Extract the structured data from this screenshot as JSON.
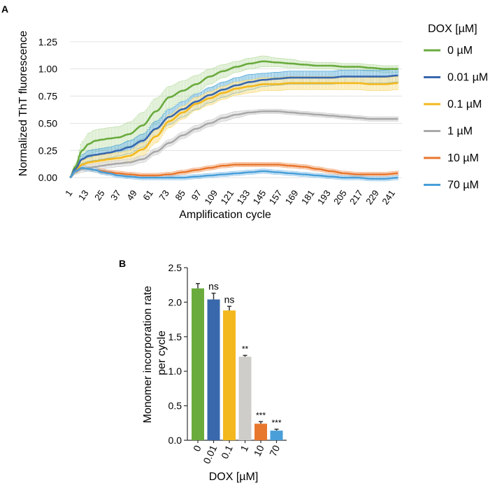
{
  "chart_data": [
    {
      "type": "line",
      "panel_label": "A",
      "title": "",
      "xlabel": "Amplification cycle",
      "ylabel": "Normalized ThT fluorescence",
      "x_ticks": [
        "1",
        "13",
        "25",
        "37",
        "49",
        "61",
        "73",
        "85",
        "97",
        "109",
        "121",
        "133",
        "145",
        "157",
        "169",
        "181",
        "193",
        "205",
        "217",
        "229",
        "241"
      ],
      "y_ticks": [
        "0.00",
        "0.25",
        "0.50",
        "0.75",
        "1.00",
        "1.25"
      ],
      "xlim": [
        1,
        248
      ],
      "ylim": [
        -0.05,
        1.3
      ],
      "grid": "horizontal",
      "legend_title": "DOX [µM]",
      "legend_position": "right",
      "series": [
        {
          "name": "0 µM",
          "color": "#6aab3e",
          "err_color": "#b9dca3",
          "x": [
            1,
            5,
            10,
            15,
            20,
            25,
            30,
            37,
            45,
            55,
            65,
            75,
            85,
            95,
            105,
            115,
            125,
            135,
            145,
            155,
            165,
            175,
            185,
            195,
            205,
            215,
            225,
            235,
            245
          ],
          "y": [
            0.0,
            0.1,
            0.25,
            0.31,
            0.34,
            0.35,
            0.36,
            0.37,
            0.4,
            0.48,
            0.61,
            0.74,
            0.8,
            0.86,
            0.93,
            0.98,
            1.02,
            1.05,
            1.07,
            1.06,
            1.05,
            1.04,
            1.03,
            1.03,
            1.02,
            1.02,
            1.01,
            1.0,
            1.0
          ],
          "err": [
            0,
            0.03,
            0.08,
            0.1,
            0.1,
            0.1,
            0.1,
            0.1,
            0.11,
            0.12,
            0.12,
            0.1,
            0.09,
            0.08,
            0.07,
            0.06,
            0.05,
            0.05,
            0.05,
            0.04,
            0.04,
            0.03,
            0.03,
            0.03,
            0.03,
            0.03,
            0.03,
            0.03,
            0.03
          ]
        },
        {
          "name": "0.01 µM",
          "color": "#3a68ad",
          "err_color": "#3f9fd0",
          "x": [
            1,
            5,
            10,
            15,
            20,
            25,
            30,
            37,
            45,
            55,
            65,
            75,
            85,
            95,
            105,
            115,
            125,
            135,
            145,
            155,
            165,
            175,
            185,
            195,
            205,
            215,
            225,
            235,
            245
          ],
          "y": [
            0.0,
            0.08,
            0.17,
            0.2,
            0.21,
            0.22,
            0.23,
            0.25,
            0.28,
            0.34,
            0.45,
            0.56,
            0.63,
            0.7,
            0.76,
            0.81,
            0.85,
            0.88,
            0.9,
            0.91,
            0.92,
            0.92,
            0.92,
            0.92,
            0.93,
            0.93,
            0.93,
            0.93,
            0.94
          ],
          "err": [
            0,
            0.02,
            0.04,
            0.05,
            0.05,
            0.05,
            0.05,
            0.05,
            0.06,
            0.06,
            0.07,
            0.07,
            0.07,
            0.07,
            0.07,
            0.07,
            0.07,
            0.07,
            0.06,
            0.06,
            0.06,
            0.06,
            0.06,
            0.06,
            0.06,
            0.06,
            0.06,
            0.06,
            0.06
          ]
        },
        {
          "name": "0.1 µM",
          "color": "#f3b81d",
          "err_color": "#f7d66b",
          "x": [
            1,
            5,
            10,
            15,
            20,
            25,
            30,
            37,
            45,
            55,
            65,
            75,
            85,
            95,
            105,
            115,
            125,
            135,
            145,
            155,
            165,
            175,
            185,
            195,
            205,
            215,
            225,
            235,
            245
          ],
          "y": [
            0.0,
            0.06,
            0.12,
            0.14,
            0.15,
            0.16,
            0.17,
            0.18,
            0.2,
            0.26,
            0.38,
            0.52,
            0.6,
            0.68,
            0.73,
            0.78,
            0.82,
            0.84,
            0.86,
            0.86,
            0.87,
            0.87,
            0.87,
            0.87,
            0.87,
            0.87,
            0.86,
            0.86,
            0.87
          ],
          "err": [
            0,
            0.02,
            0.04,
            0.04,
            0.05,
            0.05,
            0.05,
            0.05,
            0.05,
            0.06,
            0.06,
            0.06,
            0.06,
            0.06,
            0.06,
            0.06,
            0.06,
            0.06,
            0.06,
            0.06,
            0.06,
            0.06,
            0.06,
            0.06,
            0.06,
            0.06,
            0.06,
            0.06,
            0.06
          ]
        },
        {
          "name": "1 µM",
          "color": "#a9a9a9",
          "err_color": "#c9c9c9",
          "x": [
            1,
            5,
            10,
            15,
            20,
            25,
            30,
            37,
            45,
            55,
            65,
            75,
            85,
            95,
            105,
            115,
            125,
            135,
            145,
            155,
            165,
            175,
            185,
            195,
            205,
            215,
            225,
            235,
            245
          ],
          "y": [
            0.0,
            0.05,
            0.08,
            0.09,
            0.1,
            0.11,
            0.12,
            0.13,
            0.14,
            0.17,
            0.24,
            0.32,
            0.39,
            0.45,
            0.5,
            0.55,
            0.58,
            0.6,
            0.61,
            0.61,
            0.6,
            0.59,
            0.58,
            0.57,
            0.56,
            0.55,
            0.54,
            0.54,
            0.54
          ],
          "err": [
            0,
            0.02,
            0.03,
            0.03,
            0.03,
            0.03,
            0.03,
            0.03,
            0.03,
            0.03,
            0.03,
            0.03,
            0.03,
            0.03,
            0.03,
            0.03,
            0.03,
            0.02,
            0.02,
            0.02,
            0.02,
            0.02,
            0.02,
            0.02,
            0.02,
            0.02,
            0.02,
            0.02,
            0.02
          ]
        },
        {
          "name": "10 µM",
          "color": "#e8772e",
          "err_color": "#f2a574",
          "x": [
            1,
            5,
            10,
            15,
            20,
            25,
            30,
            37,
            45,
            55,
            65,
            75,
            85,
            95,
            105,
            115,
            125,
            135,
            145,
            155,
            165,
            175,
            185,
            195,
            205,
            215,
            225,
            235,
            245
          ],
          "y": [
            0.0,
            0.06,
            0.09,
            0.08,
            0.07,
            0.06,
            0.05,
            0.04,
            0.03,
            0.02,
            0.02,
            0.03,
            0.05,
            0.07,
            0.09,
            0.11,
            0.12,
            0.12,
            0.12,
            0.12,
            0.11,
            0.1,
            0.08,
            0.06,
            0.04,
            0.03,
            0.03,
            0.03,
            0.04
          ],
          "err": [
            0,
            0.01,
            0.02,
            0.02,
            0.02,
            0.02,
            0.02,
            0.02,
            0.02,
            0.02,
            0.02,
            0.02,
            0.02,
            0.02,
            0.02,
            0.02,
            0.02,
            0.02,
            0.02,
            0.02,
            0.02,
            0.02,
            0.02,
            0.02,
            0.02,
            0.02,
            0.02,
            0.02,
            0.02
          ]
        },
        {
          "name": "70 µM",
          "color": "#4a9fd8",
          "err_color": "#90c5ea",
          "x": [
            1,
            5,
            10,
            15,
            20,
            25,
            30,
            37,
            45,
            55,
            65,
            75,
            85,
            95,
            105,
            115,
            125,
            135,
            145,
            155,
            165,
            175,
            185,
            195,
            205,
            215,
            225,
            235,
            245
          ],
          "y": [
            0.0,
            0.06,
            0.09,
            0.08,
            0.07,
            0.05,
            0.04,
            0.02,
            0.01,
            0.0,
            0.0,
            0.0,
            0.0,
            0.01,
            0.02,
            0.03,
            0.04,
            0.05,
            0.06,
            0.05,
            0.04,
            0.03,
            0.02,
            0.01,
            0.0,
            0.0,
            -0.01,
            -0.01,
            0.0
          ],
          "err": [
            0,
            0.01,
            0.02,
            0.02,
            0.02,
            0.02,
            0.02,
            0.02,
            0.02,
            0.02,
            0.02,
            0.02,
            0.02,
            0.02,
            0.02,
            0.02,
            0.02,
            0.02,
            0.02,
            0.02,
            0.02,
            0.02,
            0.02,
            0.02,
            0.02,
            0.02,
            0.02,
            0.02,
            0.02
          ]
        }
      ]
    },
    {
      "type": "bar",
      "panel_label": "B",
      "title": "",
      "xlabel": "DOX [µM]",
      "ylabel": "Monomer incorporation rate per cycle",
      "categories": [
        "0",
        "0.01",
        "0.1",
        "1",
        "10",
        "70"
      ],
      "values": [
        2.2,
        2.04,
        1.88,
        1.21,
        0.24,
        0.14
      ],
      "errors": [
        0.07,
        0.09,
        0.06,
        0.02,
        0.03,
        0.02
      ],
      "annotations": [
        "",
        "ns",
        "ns",
        "**",
        "***",
        "***"
      ],
      "colors": [
        "#6aab3e",
        "#3a68ad",
        "#f3b81d",
        "#cfcdc9",
        "#e8772e",
        "#4a9fd8"
      ],
      "y_ticks": [
        "0.0",
        "0.5",
        "1.0",
        "1.5",
        "2.0",
        "2.5"
      ],
      "ylim": [
        0,
        2.5
      ],
      "grid": false
    }
  ]
}
